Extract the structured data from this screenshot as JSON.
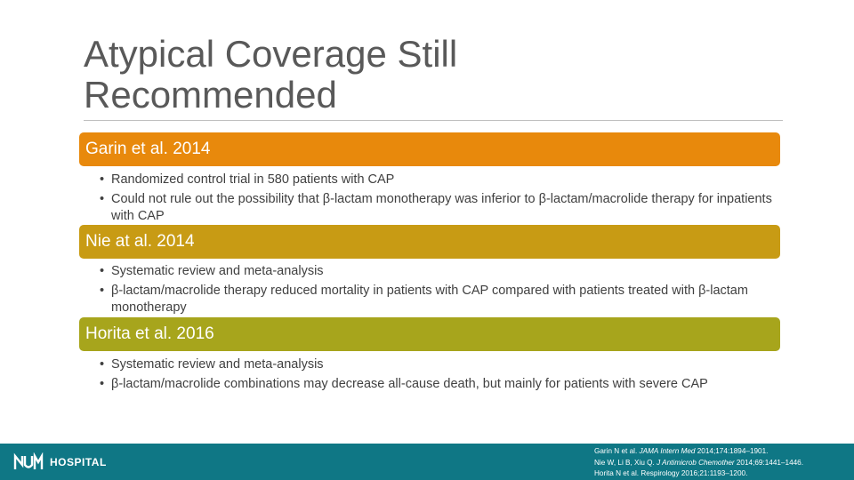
{
  "slide": {
    "title_line1": "Atypical Coverage Still",
    "title_line2": "Recommended"
  },
  "sections": [
    {
      "heading": "Garin et al. 2014",
      "color": "#e8890c",
      "bullets": [
        "Randomized control trial in 580 patients with CAP",
        "Could not rule out the possibility that β-lactam monotherapy was inferior to β-lactam/macrolide therapy for inpatients with CAP"
      ]
    },
    {
      "heading": "Nie at al. 2014",
      "color": "#c89b14",
      "bullets": [
        "Systematic review and meta-analysis",
        "β-lactam/macrolide therapy reduced mortality in patients with CAP compared with patients treated with β-lactam monotherapy"
      ]
    },
    {
      "heading": "Horita et al. 2016",
      "color": "#a7a51c",
      "bullets": [
        "Systematic review and meta-analysis",
        "β-lactam/macrolide combinations may decrease all-cause death, but mainly for patients with severe CAP"
      ]
    }
  ],
  "footer": {
    "logo_text": "HOSPITAL",
    "logo_icon": "unm-logo-icon",
    "background": "#0f7785",
    "references": [
      {
        "authors": "Garin N et al.",
        "journal": "JAMA Intern Med",
        "citation": "2014;174:1894–1901."
      },
      {
        "authors": "Nie W, Li B, Xiu Q.",
        "journal": "J Antimicrob Chemother",
        "citation": "2014;69:1441–1446."
      },
      {
        "authors": "Horita N et al. Respirology 2016;21:1193–1200.",
        "journal": "",
        "citation": ""
      }
    ]
  }
}
